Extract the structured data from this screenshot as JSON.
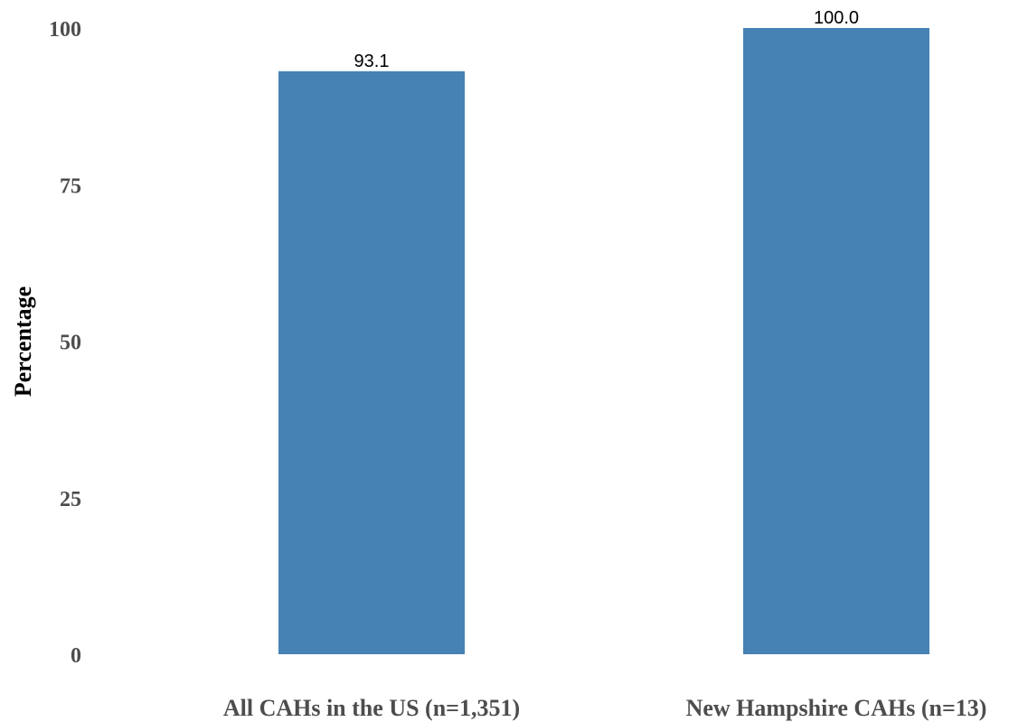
{
  "chart_data": {
    "type": "bar",
    "categories": [
      "All CAHs in the US (n=1,351)",
      "New Hampshire CAHs (n=13)"
    ],
    "values": [
      93.1,
      100.0
    ],
    "value_labels": [
      "93.1",
      "100.0"
    ],
    "title": "",
    "xlabel": "",
    "ylabel": "Percentage",
    "ylim": [
      0,
      100
    ],
    "yticks": [
      0,
      25,
      50,
      75,
      100
    ],
    "ytick_labels": [
      "0",
      "25",
      "50",
      "75",
      "100"
    ],
    "grid": false,
    "legend": "none",
    "bar_color": "#4682b4"
  }
}
